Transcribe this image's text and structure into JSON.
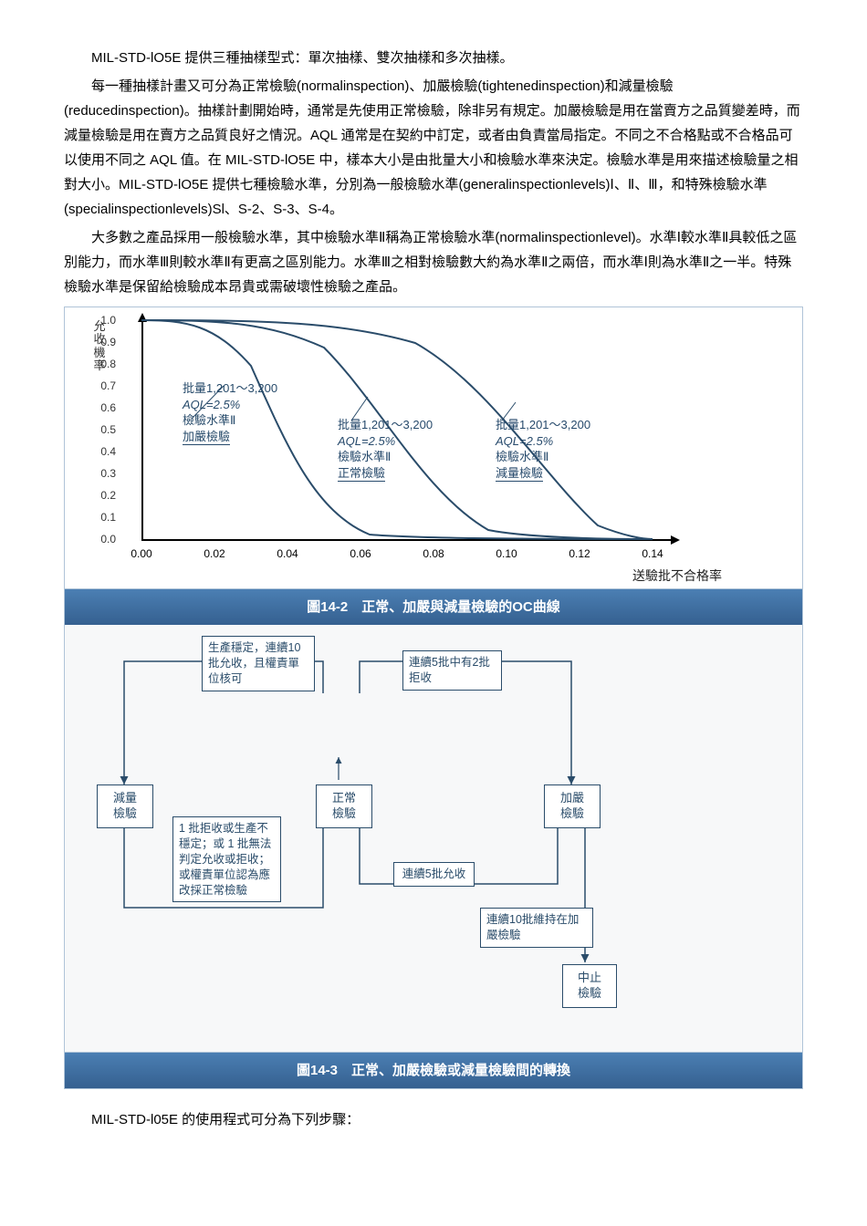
{
  "paragraphs": {
    "p1": "MIL-STD-lO5E 提供三種抽樣型式：單次抽樣、雙次抽樣和多次抽樣。",
    "p2": "每一種抽樣計畫又可分為正常檢驗(normalinspection)、加嚴檢驗(tightenedinspection)和減量檢驗(reducedinspection)。抽樣計劃開始時，通常是先使用正常檢驗，除非另有規定。加嚴檢驗是用在當賣方之品質變差時，而減量檢驗是用在賣方之品質良好之情況。AQL 通常是在契約中訂定，或者由負責當局指定。不同之不合格點或不合格品可以使用不同之 AQL 值。在 MIL-STD-lO5E 中，樣本大小是由批量大小和檢驗水準來決定。檢驗水準是用來描述檢驗量之相對大小。MIL-STD-lO5E 提供七種檢驗水準，分別為一般檢驗水準(generalinspectionlevels)Ⅰ、Ⅱ、Ⅲ，和特殊檢驗水準(specialinspectionlevels)Sl、S-2、S-3、S-4。",
    "p3": "大多數之產品採用一般檢驗水準，其中檢驗水準Ⅱ稱為正常檢驗水準(normalinspectionlevel)。水準Ⅰ較水準Ⅱ具較低之區別能力，而水準Ⅲ則較水準Ⅱ有更高之區別能力。水準Ⅲ之相對檢驗數大約為水準Ⅱ之兩倍，而水準Ⅰ則為水準Ⅱ之一半。特殊檢驗水準是保留給檢驗成本昂貴或需破壞性檢驗之產品。",
    "p4": "MIL-STD-l05E 的使用程式可分為下列步驟："
  },
  "chart": {
    "y_axis_label": "允收機率",
    "y_ticks": [
      "1.0",
      "0.9",
      "0.8",
      "0.7",
      "0.6",
      "0.5",
      "0.4",
      "0.3",
      "0.2",
      "0.1",
      "0.0"
    ],
    "x_ticks": [
      "0.00",
      "0.02",
      "0.04",
      "0.06",
      "0.08",
      "0.10",
      "0.12",
      "0.14"
    ],
    "x_label": "送驗批不合格率",
    "annot1": {
      "l1": "批量1,201～3,200",
      "l2": "AQL=2.5%",
      "l3": "檢驗水準Ⅱ",
      "l4": "加嚴檢驗"
    },
    "annot2": {
      "l1": "批量1,201～3,200",
      "l2": "AQL=2.5%",
      "l3": "檢驗水準Ⅱ",
      "l4": "正常檢驗"
    },
    "annot3": {
      "l1": "批量1,201～3,200",
      "l2": "AQL=2.5%",
      "l3": "檢驗水準Ⅱ",
      "l4": "減量檢驗"
    },
    "caption": "圖14-2　正常、加嚴與減量檢驗的OC曲線",
    "curve_color": "#2a4c6a",
    "tick_color": "#333333"
  },
  "flow": {
    "reduced": "減量\n檢驗",
    "normal": "正常\n檢驗",
    "tight": "加嚴\n檢驗",
    "stop": "中止\n檢驗",
    "box_top_left": "生產穩定，連續10批允收，且權責單位核可",
    "box_top_right": "連續5批中有2批拒收",
    "box_bottom_left": "1 批拒收或生產不穩定；或 1 批無法判定允收或拒收；或權責單位認為應改採正常檢驗",
    "box_bottom_mid": "連續5批允收",
    "box_bottom_right": "連續10批維持在加嚴檢驗",
    "caption": "圖14-3　正常、加嚴檢驗或減量檢驗間的轉換",
    "line_color": "#2a4c6a"
  }
}
